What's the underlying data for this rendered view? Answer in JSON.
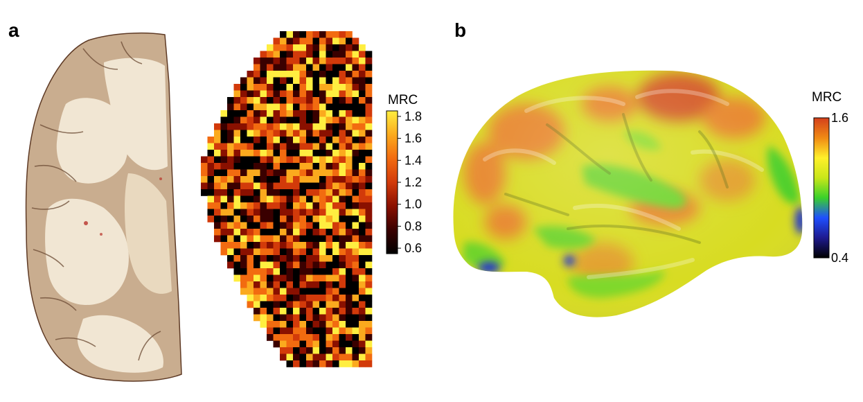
{
  "panels": {
    "a": {
      "letter": "a",
      "colorbar": {
        "title": "MRC",
        "ticks": [
          "1.8",
          "1.6",
          "1.4",
          "1.2",
          "1.0",
          "0.8",
          "0.6"
        ],
        "range": [
          0.55,
          1.85
        ],
        "colormap": [
          "#000000",
          "#3a0000",
          "#8a1000",
          "#d23a0a",
          "#f26b10",
          "#fbaa1e",
          "#ffee40"
        ]
      },
      "slice_colors": {
        "tissue": "#c9ad8f",
        "white_matter": "#f1e6d3",
        "outline": "#5e3a25"
      }
    },
    "b": {
      "letter": "b",
      "colorbar": {
        "title": "MRC",
        "ticks": [
          "1.6",
          "0.4"
        ],
        "range": [
          0.4,
          1.6
        ],
        "colormap": [
          "#000000",
          "#1e1a8f",
          "#1f4fff",
          "#3ad12a",
          "#c8e61a",
          "#fff02a",
          "#f08a14",
          "#d4401c"
        ]
      },
      "surface_colors": {
        "base": "#d8dc22",
        "green": "#6fd42a",
        "orange": "#e7862a",
        "red": "#d45a28",
        "blue": "#1c2ed0"
      }
    }
  }
}
